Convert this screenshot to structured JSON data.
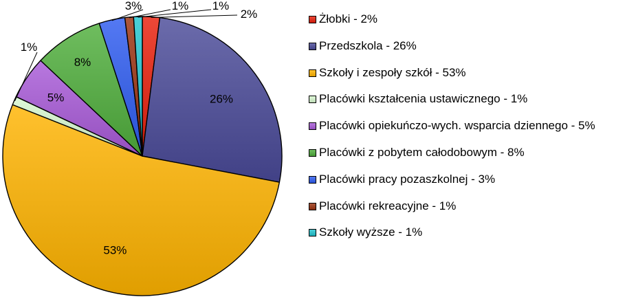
{
  "chart_data": {
    "type": "pie",
    "title": "",
    "legend_position": "right",
    "slices": [
      {
        "label": "Żłobki - 2%",
        "value": 2,
        "value_label": "2%",
        "color": "#e8200c"
      },
      {
        "label": "Przedszkola - 26%",
        "value": 26,
        "value_label": "26%",
        "color": "#4a4a98"
      },
      {
        "label": "Szkoły i zespoły szkół - 53%",
        "value": 53,
        "value_label": "53%",
        "color": "#ffb300"
      },
      {
        "label": "Placówki kształcenia ustawicznego - 1%",
        "value": 1,
        "value_label": "1%",
        "color": "#d8f8d0"
      },
      {
        "label": "Placówki opiekuńczo-wych. wsparcia dziennego - 5%",
        "value": 5,
        "value_label": "5%",
        "color": "#a85ad8"
      },
      {
        "label": "Placówki z pobytem całodobowym - 8%",
        "value": 8,
        "value_label": "8%",
        "color": "#4fae3c"
      },
      {
        "label": "Placówki pracy pozaszkolnej - 3%",
        "value": 3,
        "value_label": "3%",
        "color": "#2e5cf0"
      },
      {
        "label": "Placówki rekreacyjne - 1%",
        "value": 1,
        "value_label": "1%",
        "color": "#9a3210"
      },
      {
        "label": "Szkoły  wyższe - 1%",
        "value": 1,
        "value_label": "1%",
        "color": "#22c4d0"
      }
    ]
  }
}
